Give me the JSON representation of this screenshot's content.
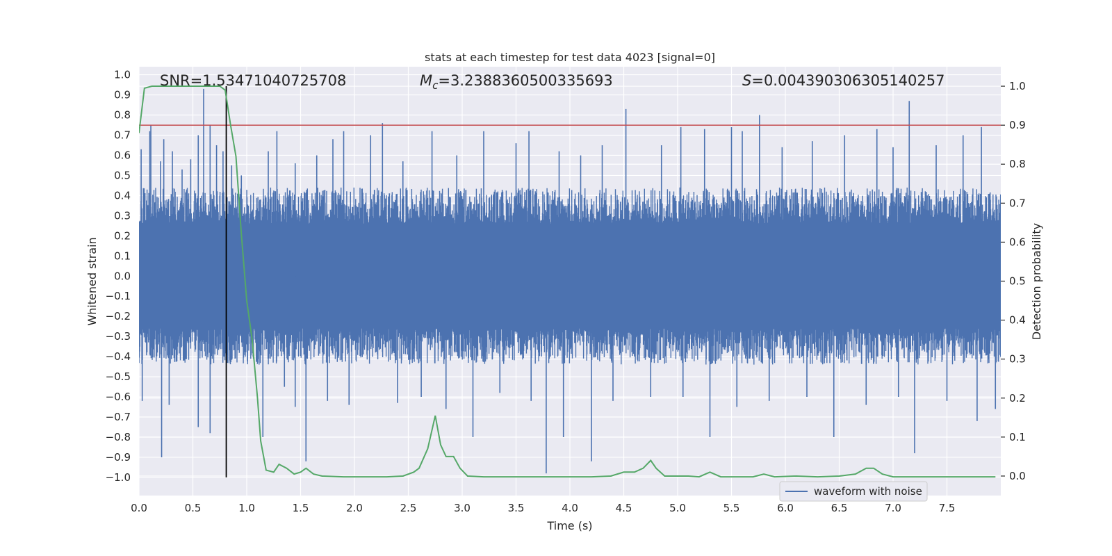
{
  "chart_data": {
    "type": "line",
    "title": "stats at each timestep for test data 4023 [signal=0]",
    "xlabel": "Time (s)",
    "ylabel": "Whitened strain",
    "y2label": "Detection probability",
    "xlim": [
      0,
      8
    ],
    "ylim": [
      -1.09,
      1.04
    ],
    "y2lim": [
      -0.05,
      1.05
    ],
    "xticks": [
      "0.0",
      "0.5",
      "1.0",
      "1.5",
      "2.0",
      "2.5",
      "3.0",
      "3.5",
      "4.0",
      "4.5",
      "5.0",
      "5.5",
      "6.0",
      "6.5",
      "7.0",
      "7.5"
    ],
    "yticks": [
      "1.0",
      "0.9",
      "0.8",
      "0.7",
      "0.6",
      "0.5",
      "0.4",
      "0.3",
      "0.2",
      "0.1",
      "0.0",
      "-0.1",
      "-0.2",
      "-0.3",
      "-0.4",
      "-0.5",
      "-0.6",
      "-0.7",
      "-0.8",
      "-0.9",
      "-1.0"
    ],
    "y2ticks": [
      "1.0",
      "0.9",
      "0.8",
      "0.7",
      "0.6",
      "0.5",
      "0.4",
      "0.3",
      "0.2",
      "0.1",
      "0.0"
    ],
    "annotations": {
      "snr": "SNR=1.53471040725708",
      "mc_symbol": "M",
      "mc_sub": "c",
      "mc_value": "=3.2388360500335693",
      "s_symbol": "S",
      "s_value": "=0.004390306305140257"
    },
    "threshold": 0.9,
    "marker_time": 0.81,
    "legend": {
      "label": "waveform with noise",
      "position": "lower-right"
    },
    "series": [
      {
        "name": "waveform with noise",
        "color": "#4c72b0",
        "axis": "left",
        "envelope": "dense noise, band about ±0.3 with spikes",
        "spikes": [
          [
            0.02,
            0.63
          ],
          [
            0.1,
            0.72
          ],
          [
            0.11,
            0.75
          ],
          [
            0.2,
            0.57
          ],
          [
            0.23,
            0.68
          ],
          [
            0.31,
            0.62
          ],
          [
            0.4,
            0.53
          ],
          [
            0.48,
            0.58
          ],
          [
            0.55,
            0.7
          ],
          [
            0.6,
            0.93
          ],
          [
            0.66,
            0.75
          ],
          [
            0.72,
            0.65
          ],
          [
            0.78,
            0.62
          ],
          [
            0.86,
            0.55
          ],
          [
            0.95,
            0.5
          ],
          [
            1.2,
            0.62
          ],
          [
            1.28,
            0.72
          ],
          [
            1.45,
            0.56
          ],
          [
            1.65,
            0.6
          ],
          [
            1.8,
            0.68
          ],
          [
            1.9,
            0.72
          ],
          [
            2.15,
            0.7
          ],
          [
            2.26,
            0.76
          ],
          [
            2.45,
            0.57
          ],
          [
            2.72,
            0.72
          ],
          [
            2.95,
            0.6
          ],
          [
            3.2,
            0.72
          ],
          [
            3.5,
            0.66
          ],
          [
            3.62,
            0.72
          ],
          [
            3.9,
            0.62
          ],
          [
            4.1,
            0.6
          ],
          [
            4.3,
            0.65
          ],
          [
            4.52,
            0.83
          ],
          [
            4.85,
            0.65
          ],
          [
            5.03,
            0.74
          ],
          [
            5.25,
            0.73
          ],
          [
            5.5,
            0.74
          ],
          [
            5.6,
            0.72
          ],
          [
            5.76,
            0.8
          ],
          [
            5.97,
            0.64
          ],
          [
            6.25,
            0.67
          ],
          [
            6.55,
            0.7
          ],
          [
            6.85,
            0.73
          ],
          [
            7.0,
            0.64
          ],
          [
            7.15,
            0.87
          ],
          [
            7.4,
            0.65
          ],
          [
            7.65,
            0.7
          ],
          [
            7.82,
            0.74
          ],
          [
            0.03,
            -0.62
          ],
          [
            0.21,
            -0.9
          ],
          [
            0.28,
            -0.64
          ],
          [
            0.55,
            -0.75
          ],
          [
            0.66,
            -0.78
          ],
          [
            0.79,
            -0.4
          ],
          [
            1.15,
            -0.8
          ],
          [
            1.35,
            -0.55
          ],
          [
            1.45,
            -0.65
          ],
          [
            1.55,
            -0.92
          ],
          [
            1.75,
            -0.62
          ],
          [
            1.95,
            -0.64
          ],
          [
            2.4,
            -0.63
          ],
          [
            2.62,
            -0.6
          ],
          [
            2.85,
            -0.66
          ],
          [
            3.1,
            -0.8
          ],
          [
            3.35,
            -0.58
          ],
          [
            3.64,
            -0.62
          ],
          [
            3.78,
            -0.98
          ],
          [
            3.94,
            -0.8
          ],
          [
            4.2,
            -0.92
          ],
          [
            4.4,
            -0.62
          ],
          [
            4.75,
            -0.6
          ],
          [
            5.05,
            -0.6
          ],
          [
            5.3,
            -0.8
          ],
          [
            5.55,
            -0.65
          ],
          [
            5.85,
            -0.62
          ],
          [
            6.2,
            -0.6
          ],
          [
            6.45,
            -0.8
          ],
          [
            6.75,
            -0.64
          ],
          [
            7.05,
            -0.6
          ],
          [
            7.2,
            -0.88
          ],
          [
            7.5,
            -0.62
          ],
          [
            7.78,
            -0.72
          ],
          [
            7.95,
            -0.66
          ]
        ]
      },
      {
        "name": "detection probability",
        "color": "#55a868",
        "axis": "right",
        "x": [
          0.0,
          0.05,
          0.12,
          0.3,
          0.5,
          0.6,
          0.7,
          0.75,
          0.8,
          0.85,
          0.9,
          0.95,
          1.0,
          1.05,
          1.1,
          1.13,
          1.18,
          1.25,
          1.3,
          1.37,
          1.44,
          1.5,
          1.55,
          1.62,
          1.7,
          1.9,
          2.1,
          2.3,
          2.45,
          2.55,
          2.6,
          2.68,
          2.75,
          2.8,
          2.85,
          2.92,
          2.98,
          3.05,
          3.2,
          3.4,
          3.6,
          3.8,
          4.0,
          4.2,
          4.38,
          4.5,
          4.6,
          4.68,
          4.75,
          4.8,
          4.88,
          5.0,
          5.1,
          5.2,
          5.3,
          5.4,
          5.55,
          5.7,
          5.8,
          5.9,
          6.1,
          6.3,
          6.5,
          6.65,
          6.75,
          6.82,
          6.9,
          7.0,
          7.2,
          7.4,
          7.6,
          7.8,
          7.95
        ],
        "y": [
          0.88,
          0.995,
          1.0,
          1.0,
          1.0,
          1.0,
          1.0,
          1.0,
          0.99,
          0.9,
          0.82,
          0.62,
          0.45,
          0.35,
          0.2,
          0.09,
          0.015,
          0.01,
          0.03,
          0.02,
          0.005,
          0.01,
          0.02,
          0.005,
          0.0,
          -0.002,
          -0.002,
          -0.002,
          0.0,
          0.01,
          0.02,
          0.07,
          0.155,
          0.08,
          0.05,
          0.05,
          0.02,
          0.0,
          -0.002,
          -0.002,
          -0.002,
          -0.002,
          -0.002,
          -0.002,
          0.0,
          0.01,
          0.01,
          0.02,
          0.04,
          0.02,
          0.0,
          0.0,
          0.0,
          -0.002,
          0.01,
          -0.002,
          -0.002,
          -0.002,
          0.005,
          -0.002,
          0.0,
          -0.002,
          0.0,
          0.005,
          0.02,
          0.02,
          0.005,
          -0.002,
          -0.002,
          -0.002,
          -0.002,
          -0.002,
          -0.002
        ]
      }
    ]
  }
}
